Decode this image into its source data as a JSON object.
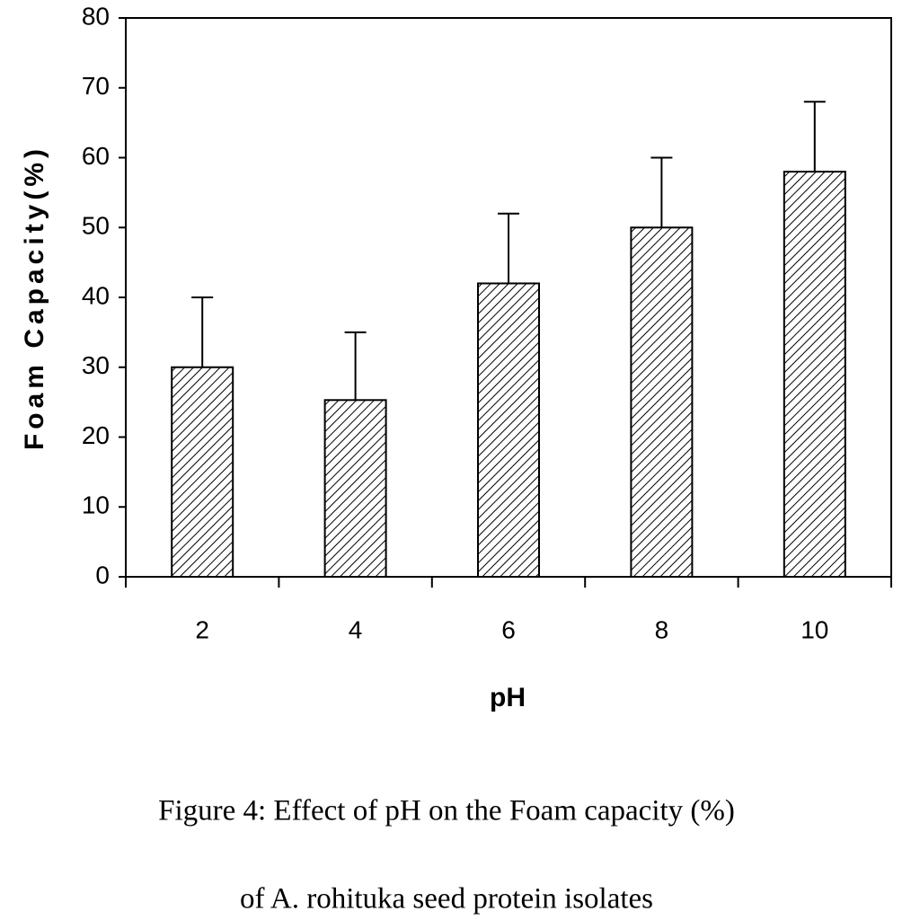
{
  "chart_data": {
    "type": "bar",
    "categories": [
      "2",
      "4",
      "6",
      "8",
      "10"
    ],
    "values": [
      30,
      25.3,
      42,
      50,
      58
    ],
    "errors": [
      10,
      9.7,
      10,
      10,
      10
    ],
    "color": "#000000",
    "xlabel": "pH",
    "ylabel": "Foam Capacity(%)",
    "ylim": [
      0,
      80
    ],
    "yticks": [
      0,
      10,
      20,
      30,
      40,
      50,
      60,
      70,
      80
    ],
    "caption": [
      "Figure 4: Effect of pH on the Foam capacity (%)",
      "of A. rohituka seed protein isolates"
    ]
  }
}
